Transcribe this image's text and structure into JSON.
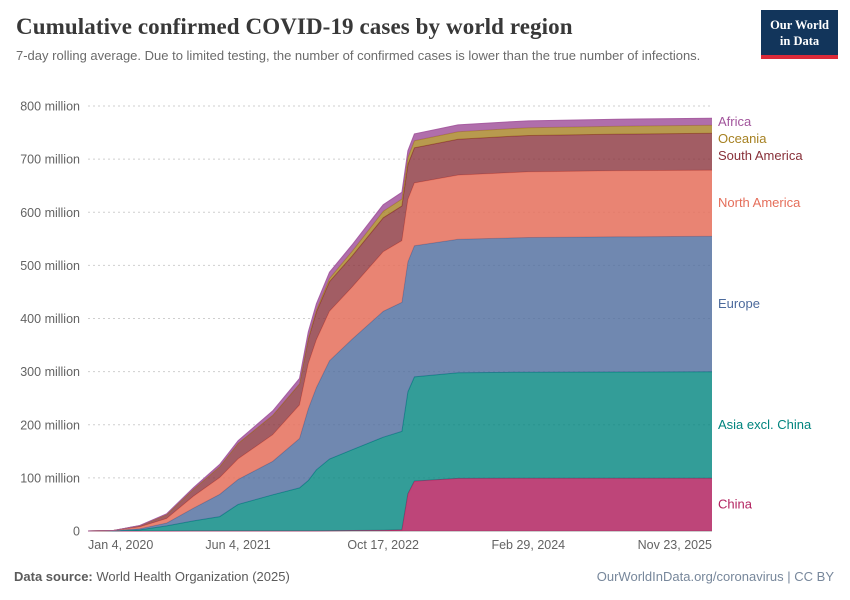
{
  "header": {
    "title": "Cumulative confirmed COVID-19 cases by world region",
    "subtitle": "7-day rolling average. Due to limited testing, the number of confirmed cases is lower than the true number of infections.",
    "logo": {
      "line1": "Our World",
      "line2": "in Data"
    }
  },
  "brand": {
    "navy": "#12355b",
    "red": "#dc2a39"
  },
  "footer": {
    "source_label": "Data source:",
    "source": "World Health Organization (2025)",
    "credit": "OurWorldInData.org/coronavirus | CC BY"
  },
  "chart_data": {
    "type": "area",
    "stacked": true,
    "title": "Cumulative confirmed COVID-19 cases by world region",
    "unit": "million cases",
    "grid": true,
    "legend_position": "right",
    "ylim": [
      0,
      800
    ],
    "y_ticks": [
      {
        "value": 0,
        "label": "0"
      },
      {
        "value": 100,
        "label": "100 million"
      },
      {
        "value": 200,
        "label": "200 million"
      },
      {
        "value": 300,
        "label": "300 million"
      },
      {
        "value": 400,
        "label": "400 million"
      },
      {
        "value": 500,
        "label": "500 million"
      },
      {
        "value": 600,
        "label": "600 million"
      },
      {
        "value": 700,
        "label": "700 million"
      },
      {
        "value": 800,
        "label": "800 million"
      }
    ],
    "x_ticks": [
      {
        "label": "Jan 4, 2020",
        "t": 0
      },
      {
        "label": "Jun 4, 2021",
        "t": 0.2405
      },
      {
        "label": "Oct 17, 2022",
        "t": 0.473
      },
      {
        "label": "Feb 29, 2024",
        "t": 0.7056
      },
      {
        "label": "Nov 23, 2025",
        "t": 1.0
      }
    ],
    "x_range": {
      "start": "Jan 4, 2020",
      "end": "Nov 23, 2025"
    },
    "t": [
      0,
      0.041,
      0.083,
      0.126,
      0.169,
      0.211,
      0.2405,
      0.296,
      0.339,
      0.353,
      0.366,
      0.387,
      0.423,
      0.473,
      0.503,
      0.5126,
      0.523,
      0.593,
      0.678,
      0.706,
      0.848,
      1.0
    ],
    "series": [
      {
        "name": "China",
        "color": "#B32461",
        "fill_opacity": 0.85,
        "values": [
          0,
          0.08,
          0.085,
          0.09,
          0.096,
          0.1,
          0.1,
          0.11,
          0.115,
          0.12,
          0.13,
          0.5,
          0.9,
          1.5,
          2.5,
          70,
          94,
          99,
          99.2,
          99.2,
          99.3,
          99.4
        ]
      },
      {
        "name": "Asia excl. China",
        "color": "#00847E",
        "fill_opacity": 0.8,
        "values": [
          0,
          0.12,
          1.9,
          9.5,
          19,
          27,
          50,
          68,
          81,
          95,
          115,
          135,
          152,
          175,
          185,
          192,
          196,
          199,
          199.5,
          199.7,
          200,
          200.3
        ]
      },
      {
        "name": "Europe",
        "color": "#4C6A9C",
        "fill_opacity": 0.8,
        "values": [
          0,
          0.5,
          2.4,
          5.5,
          24,
          42,
          47,
          63,
          93,
          135,
          155,
          185,
          208,
          237,
          243,
          245,
          247,
          251,
          253,
          253.5,
          254.5,
          255
        ]
      },
      {
        "name": "North America",
        "color": "#E56E5A",
        "fill_opacity": 0.85,
        "values": [
          0,
          0.25,
          3.4,
          8.3,
          22.5,
          31.5,
          38.6,
          50,
          63,
          85,
          90,
          93,
          98,
          112,
          116,
          117,
          118,
          121,
          123,
          123.5,
          124.2,
          124.5
        ]
      },
      {
        "name": "South America",
        "color": "#883039",
        "fill_opacity": 0.78,
        "values": [
          0,
          0.03,
          2.2,
          7.5,
          13.2,
          20.5,
          29.3,
          36.5,
          39.5,
          46,
          52.5,
          56,
          58.5,
          64,
          65.5,
          66,
          66.3,
          67.5,
          68.3,
          68.5,
          69.2,
          69.5
        ]
      },
      {
        "name": "Oceania",
        "color": "#A68122",
        "fill_opacity": 0.8,
        "values": [
          0,
          0.005,
          0.01,
          0.03,
          0.05,
          0.06,
          0.07,
          0.23,
          0.56,
          2.6,
          3.6,
          5.9,
          8.9,
          12.3,
          13,
          13.2,
          13.4,
          14,
          14.4,
          14.5,
          14.8,
          15
        ]
      },
      {
        "name": "Africa",
        "color": "#A2559C",
        "fill_opacity": 0.85,
        "values": [
          0,
          0.01,
          0.4,
          1.5,
          2.8,
          4.2,
          4.9,
          8.3,
          9.9,
          11,
          11.5,
          11.8,
          12.1,
          12.4,
          12.6,
          12.7,
          12.75,
          12.9,
          13,
          13.05,
          13.15,
          13.2
        ]
      }
    ]
  }
}
